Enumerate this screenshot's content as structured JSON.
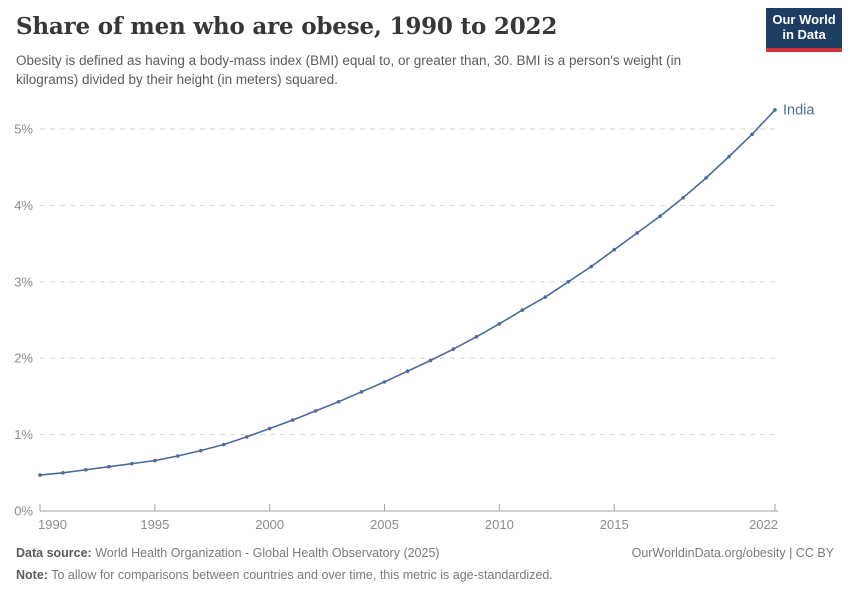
{
  "header": {
    "title": "Share of men who are obese, 1990 to 2022",
    "subtitle": "Obesity is defined as having a body-mass index (BMI) equal to, or greater than, 30. BMI is a person's weight (in kilograms) divided by their height (in meters) squared.",
    "logo": {
      "line1": "Our World",
      "line2": "in Data",
      "bg_color": "#1d3d63",
      "accent_color": "#cf3138"
    }
  },
  "chart_data": {
    "type": "line",
    "title": "Share of men who are obese, 1990 to 2022",
    "xlabel": "",
    "ylabel": "",
    "x": [
      1990,
      1991,
      1992,
      1993,
      1994,
      1995,
      1996,
      1997,
      1998,
      1999,
      2000,
      2001,
      2002,
      2003,
      2004,
      2005,
      2006,
      2007,
      2008,
      2009,
      2010,
      2011,
      2012,
      2013,
      2014,
      2015,
      2016,
      2017,
      2018,
      2019,
      2020,
      2021,
      2022
    ],
    "series": [
      {
        "name": "India",
        "color": "#4c6a9c",
        "values": [
          0.47,
          0.5,
          0.54,
          0.58,
          0.62,
          0.66,
          0.72,
          0.79,
          0.87,
          0.97,
          1.08,
          1.19,
          1.31,
          1.43,
          1.56,
          1.69,
          1.83,
          1.97,
          2.12,
          2.28,
          2.45,
          2.63,
          2.8,
          3.0,
          3.2,
          3.42,
          3.64,
          3.86,
          4.1,
          4.36,
          4.64,
          4.93,
          5.25
        ]
      }
    ],
    "xlim": [
      1990,
      2022
    ],
    "ylim": [
      0,
      5.5
    ],
    "xtick_values": [
      1990,
      1995,
      2000,
      2005,
      2010,
      2015,
      2022
    ],
    "ytick_values": [
      0,
      1,
      2,
      3,
      4,
      5
    ],
    "ytick_labels": [
      "0%",
      "1%",
      "2%",
      "3%",
      "4%",
      "5%"
    ],
    "grid": "horizontal-dashed",
    "legend_position": "end-of-line-label",
    "marker": "point",
    "grid_color": "#d5d5d5",
    "axis_color": "#a1a1a1",
    "tick_label_color": "#8c8c8c"
  },
  "footer": {
    "datasource_label": "Data source:",
    "datasource_text": " World Health Organization - Global Health Observatory (2025)",
    "link_text": "OurWorldinData.org/obesity | CC BY",
    "note_label": "Note:",
    "note_text": " To allow for comparisons between countries and over time, this metric is age-standardized."
  }
}
